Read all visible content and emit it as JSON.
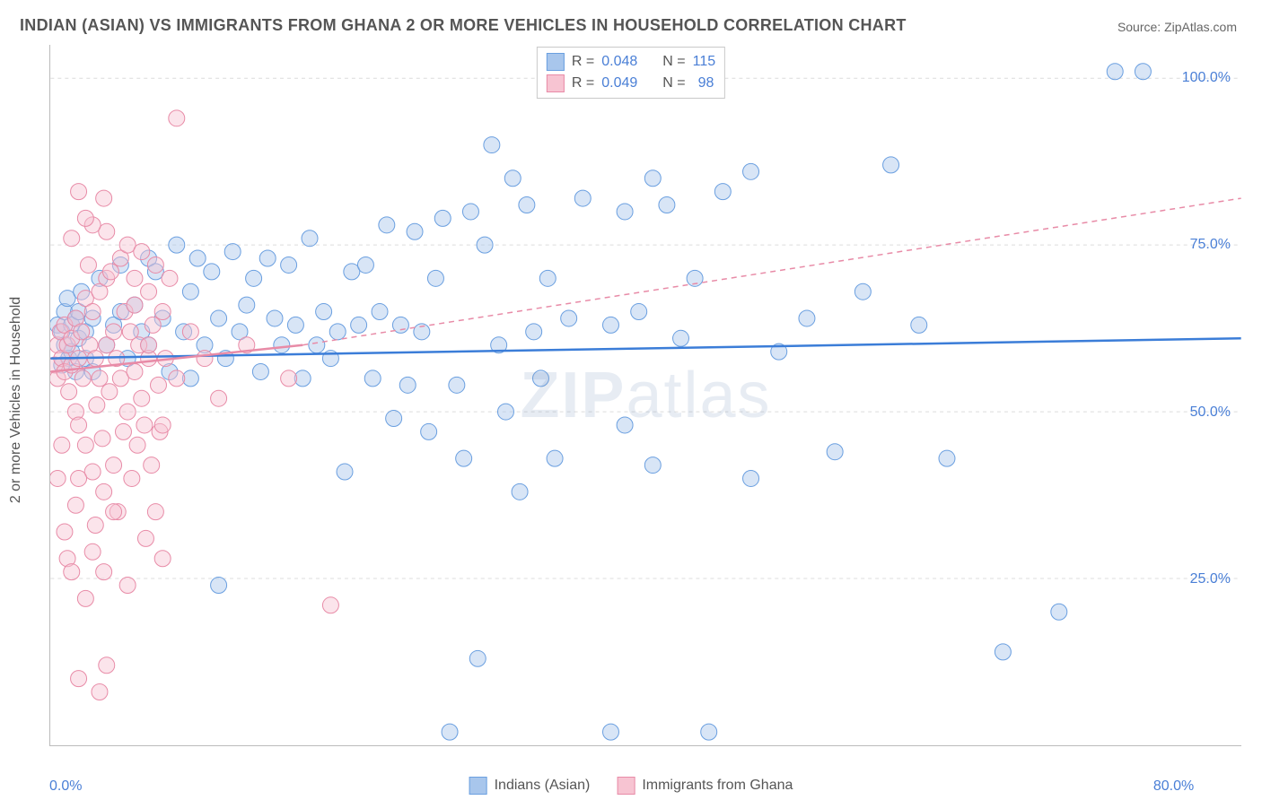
{
  "title": "INDIAN (ASIAN) VS IMMIGRANTS FROM GHANA 2 OR MORE VEHICLES IN HOUSEHOLD CORRELATION CHART",
  "source_label": "Source:",
  "source_value": "ZipAtlas.com",
  "y_axis_title": "2 or more Vehicles in Household",
  "watermark": "ZIPatlas",
  "chart": {
    "type": "scatter",
    "xlim": [
      0,
      85
    ],
    "ylim": [
      0,
      105
    ],
    "x_ticks": [
      {
        "v": 0,
        "label": "0.0%"
      },
      {
        "v": 80,
        "label": "80.0%"
      }
    ],
    "y_ticks": [
      {
        "v": 25,
        "label": "25.0%"
      },
      {
        "v": 50,
        "label": "50.0%"
      },
      {
        "v": 75,
        "label": "75.0%"
      },
      {
        "v": 100,
        "label": "100.0%"
      }
    ],
    "grid_color": "#dcdcdc",
    "background_color": "#ffffff",
    "axis_color": "#bbbbbb",
    "tick_label_color": "#4a7fd6",
    "tick_label_fontsize": 16,
    "marker_radius": 9,
    "marker_opacity": 0.45,
    "series": [
      {
        "name": "Indians (Asian)",
        "fill_color": "#a8c6ec",
        "stroke_color": "#6a9fe0",
        "points": [
          [
            0.5,
            63
          ],
          [
            0.8,
            62
          ],
          [
            1,
            65
          ],
          [
            1,
            60
          ],
          [
            1.2,
            67
          ],
          [
            1.3,
            58
          ],
          [
            1.5,
            63
          ],
          [
            1.5,
            59
          ],
          [
            1.8,
            64
          ],
          [
            2,
            61
          ],
          [
            2,
            65
          ],
          [
            2.2,
            68
          ],
          [
            2.5,
            62
          ],
          [
            3,
            64
          ],
          [
            0.8,
            57
          ],
          [
            1.8,
            56
          ],
          [
            2.5,
            58
          ],
          [
            3,
            56
          ],
          [
            3.5,
            70
          ],
          [
            4,
            60
          ],
          [
            4.5,
            63
          ],
          [
            5,
            65
          ],
          [
            5,
            72
          ],
          [
            5.5,
            58
          ],
          [
            6,
            66
          ],
          [
            6.5,
            62
          ],
          [
            7,
            73
          ],
          [
            7,
            60
          ],
          [
            7.5,
            71
          ],
          [
            8,
            64
          ],
          [
            8.5,
            56
          ],
          [
            9,
            75
          ],
          [
            9.5,
            62
          ],
          [
            10,
            68
          ],
          [
            10,
            55
          ],
          [
            10.5,
            73
          ],
          [
            11,
            60
          ],
          [
            11.5,
            71
          ],
          [
            12,
            64
          ],
          [
            12.5,
            58
          ],
          [
            13,
            74
          ],
          [
            13.5,
            62
          ],
          [
            14,
            66
          ],
          [
            14.5,
            70
          ],
          [
            15,
            56
          ],
          [
            15.5,
            73
          ],
          [
            16,
            64
          ],
          [
            16.5,
            60
          ],
          [
            17,
            72
          ],
          [
            17.5,
            63
          ],
          [
            18,
            55
          ],
          [
            18.5,
            76
          ],
          [
            19,
            60
          ],
          [
            19.5,
            65
          ],
          [
            20,
            58
          ],
          [
            20.5,
            62
          ],
          [
            21,
            41
          ],
          [
            21.5,
            71
          ],
          [
            22,
            63
          ],
          [
            22.5,
            72
          ],
          [
            23,
            55
          ],
          [
            23.5,
            65
          ],
          [
            24,
            78
          ],
          [
            24.5,
            49
          ],
          [
            25,
            63
          ],
          [
            25.5,
            54
          ],
          [
            26,
            77
          ],
          [
            26.5,
            62
          ],
          [
            27,
            47
          ],
          [
            27.5,
            70
          ],
          [
            28,
            79
          ],
          [
            28.5,
            2
          ],
          [
            29,
            54
          ],
          [
            29.5,
            43
          ],
          [
            30,
            80
          ],
          [
            30.5,
            13
          ],
          [
            31,
            75
          ],
          [
            31.5,
            90
          ],
          [
            32,
            60
          ],
          [
            32.5,
            50
          ],
          [
            33,
            85
          ],
          [
            33.5,
            38
          ],
          [
            34,
            81
          ],
          [
            34.5,
            62
          ],
          [
            35,
            55
          ],
          [
            35.5,
            70
          ],
          [
            36,
            43
          ],
          [
            37,
            64
          ],
          [
            38,
            82
          ],
          [
            12,
            24
          ],
          [
            40,
            2
          ],
          [
            40,
            63
          ],
          [
            41,
            80
          ],
          [
            41,
            48
          ],
          [
            42,
            65
          ],
          [
            43,
            85
          ],
          [
            43,
            42
          ],
          [
            44,
            81
          ],
          [
            45,
            61
          ],
          [
            46,
            70
          ],
          [
            47,
            2
          ],
          [
            48,
            83
          ],
          [
            50,
            86
          ],
          [
            50,
            40
          ],
          [
            52,
            59
          ],
          [
            54,
            64
          ],
          [
            56,
            44
          ],
          [
            58,
            68
          ],
          [
            60,
            87
          ],
          [
            62,
            63
          ],
          [
            64,
            43
          ],
          [
            68,
            14
          ],
          [
            72,
            20
          ],
          [
            76,
            101
          ],
          [
            78,
            101
          ]
        ]
      },
      {
        "name": "Immigrants from Ghana",
        "fill_color": "#f7c4d2",
        "stroke_color": "#e88ba7",
        "points": [
          [
            0.3,
            57
          ],
          [
            0.5,
            60
          ],
          [
            0.5,
            55
          ],
          [
            0.7,
            62
          ],
          [
            0.8,
            58
          ],
          [
            1,
            56
          ],
          [
            1,
            63
          ],
          [
            1.2,
            60
          ],
          [
            1.3,
            53
          ],
          [
            1.5,
            61
          ],
          [
            1.5,
            57
          ],
          [
            1.8,
            64
          ],
          [
            1.8,
            50
          ],
          [
            2,
            58
          ],
          [
            2,
            48
          ],
          [
            2.2,
            62
          ],
          [
            2.3,
            55
          ],
          [
            2.5,
            67
          ],
          [
            2.5,
            45
          ],
          [
            2.7,
            72
          ],
          [
            2.8,
            60
          ],
          [
            3,
            41
          ],
          [
            3,
            65
          ],
          [
            3.2,
            58
          ],
          [
            3.3,
            51
          ],
          [
            3.5,
            68
          ],
          [
            3.5,
            55
          ],
          [
            3.7,
            46
          ],
          [
            3.8,
            38
          ],
          [
            4,
            70
          ],
          [
            4,
            60
          ],
          [
            4.2,
            53
          ],
          [
            4.3,
            71
          ],
          [
            4.5,
            62
          ],
          [
            4.5,
            42
          ],
          [
            4.7,
            58
          ],
          [
            4.8,
            35
          ],
          [
            5,
            73
          ],
          [
            5,
            55
          ],
          [
            5.2,
            47
          ],
          [
            5.3,
            65
          ],
          [
            5.5,
            75
          ],
          [
            5.5,
            50
          ],
          [
            5.7,
            62
          ],
          [
            5.8,
            40
          ],
          [
            6,
            70
          ],
          [
            6,
            56
          ],
          [
            6.2,
            45
          ],
          [
            6.3,
            60
          ],
          [
            6.5,
            74
          ],
          [
            6.5,
            52
          ],
          [
            6.7,
            48
          ],
          [
            6.8,
            31
          ],
          [
            7,
            68
          ],
          [
            7,
            58
          ],
          [
            7.2,
            42
          ],
          [
            7.3,
            63
          ],
          [
            7.5,
            72
          ],
          [
            7.5,
            35
          ],
          [
            7.7,
            54
          ],
          [
            7.8,
            47
          ],
          [
            8,
            28
          ],
          [
            8,
            65
          ],
          [
            8.2,
            58
          ],
          [
            8.5,
            70
          ],
          [
            9,
            94
          ],
          [
            1.5,
            76
          ],
          [
            4,
            77
          ],
          [
            3,
            78
          ],
          [
            2.5,
            79
          ],
          [
            3.8,
            82
          ],
          [
            2,
            83
          ],
          [
            1,
            32
          ],
          [
            1.2,
            28
          ],
          [
            1.8,
            36
          ],
          [
            2.5,
            22
          ],
          [
            3,
            29
          ],
          [
            0.8,
            45
          ],
          [
            0.5,
            40
          ],
          [
            1.5,
            26
          ],
          [
            2,
            40
          ],
          [
            3.2,
            33
          ],
          [
            3.8,
            26
          ],
          [
            4.5,
            35
          ],
          [
            2,
            10
          ],
          [
            3.5,
            8
          ],
          [
            4,
            12
          ],
          [
            5.5,
            24
          ],
          [
            17,
            55
          ],
          [
            20,
            21
          ],
          [
            6,
            66
          ],
          [
            7,
            60
          ],
          [
            8,
            48
          ],
          [
            9,
            55
          ],
          [
            10,
            62
          ],
          [
            11,
            58
          ],
          [
            12,
            52
          ],
          [
            14,
            60
          ]
        ]
      }
    ],
    "trendlines": [
      {
        "name": "blue_trend",
        "color": "#3b7dd8",
        "width": 2.5,
        "dash": "none",
        "from": [
          0,
          58
        ],
        "to": [
          85,
          61
        ]
      },
      {
        "name": "pink_trend_solid",
        "color": "#e88ba7",
        "width": 2.5,
        "dash": "none",
        "from": [
          0,
          56
        ],
        "to": [
          18,
          60
        ]
      },
      {
        "name": "pink_trend_dash",
        "color": "#e88ba7",
        "width": 1.5,
        "dash": "6,5",
        "from": [
          18,
          60
        ],
        "to": [
          85,
          82
        ]
      }
    ]
  },
  "legend_top": [
    {
      "swatch_fill": "#a8c6ec",
      "swatch_stroke": "#6a9fe0",
      "R_label": "R =",
      "R": "0.048",
      "N_label": "N =",
      "N": "115"
    },
    {
      "swatch_fill": "#f7c4d2",
      "swatch_stroke": "#e88ba7",
      "R_label": "R =",
      "R": "0.049",
      "N_label": "N =",
      "N": "98"
    }
  ],
  "legend_bottom": [
    {
      "swatch_fill": "#a8c6ec",
      "swatch_stroke": "#6a9fe0",
      "label": "Indians (Asian)"
    },
    {
      "swatch_fill": "#f7c4d2",
      "swatch_stroke": "#e88ba7",
      "label": "Immigrants from Ghana"
    }
  ]
}
